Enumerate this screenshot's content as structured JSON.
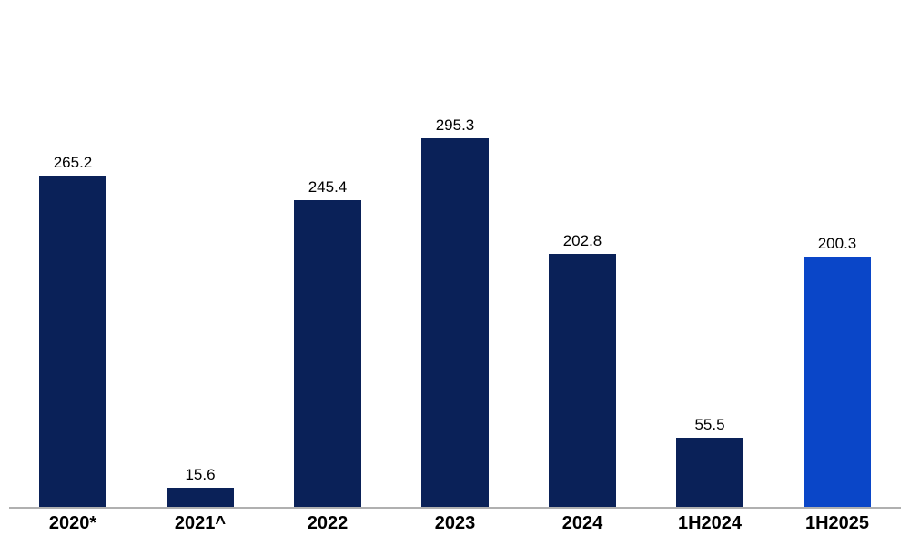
{
  "chart_data": {
    "type": "bar",
    "categories": [
      "2020*",
      "2021^",
      "2022",
      "2023",
      "2024",
      "1H2024",
      "1H2025"
    ],
    "values": [
      265.2,
      15.6,
      245.4,
      295.3,
      202.8,
      55.5,
      200.3
    ],
    "bar_colors": [
      "#0A2158",
      "#0A2158",
      "#0A2158",
      "#0A2158",
      "#0A2158",
      "#0A2158",
      "#0A46C8"
    ],
    "title": "",
    "xlabel": "",
    "ylabel": "",
    "ylim": [
      0,
      330
    ],
    "grid": false,
    "legend": false,
    "value_labels_shown": true
  },
  "colors": {
    "bar_default": "#0A2158",
    "bar_highlight": "#0A46C8",
    "axis_line": "#B0B0B0",
    "label_text": "#000000",
    "background": "#FFFFFF"
  }
}
